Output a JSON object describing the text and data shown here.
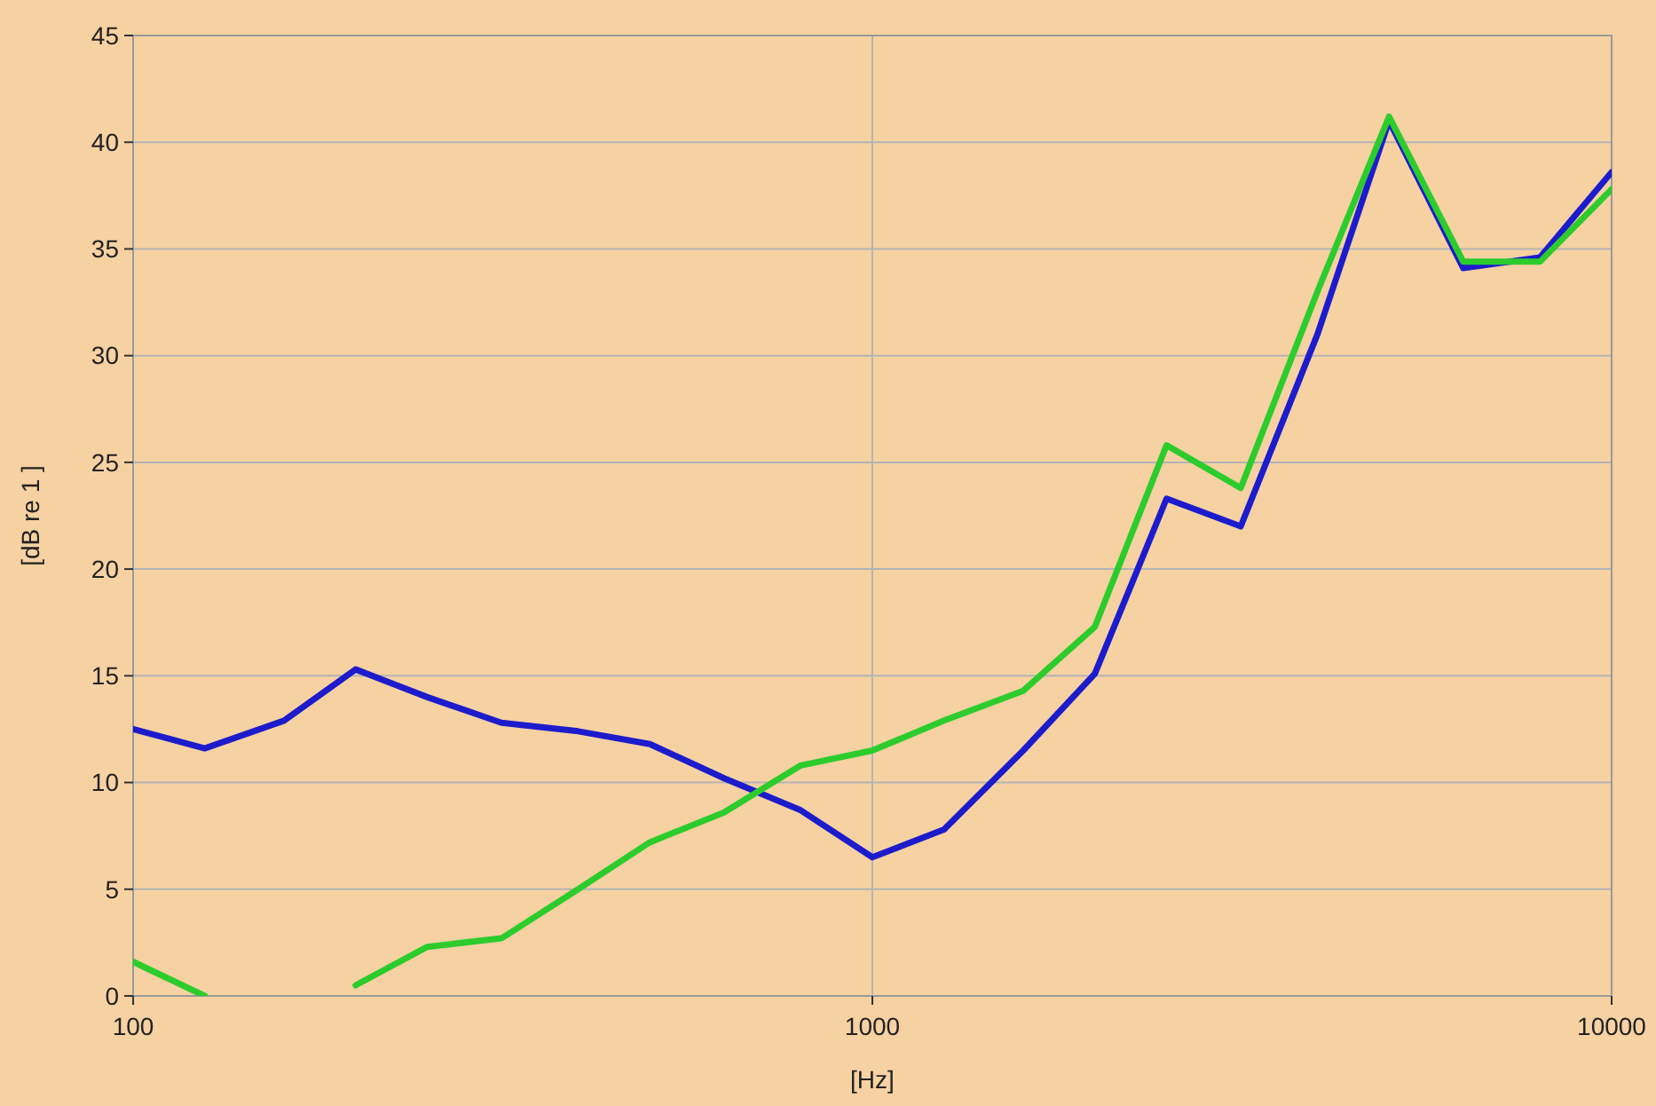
{
  "chart_data": {
    "type": "line",
    "xlabel": "[Hz]",
    "ylabel": "[dB re 1 ]",
    "log": "x",
    "grid": true,
    "marker": "none",
    "line_style": "solid",
    "x": [
      100,
      125,
      160,
      200,
      250,
      315,
      400,
      500,
      630,
      800,
      1000,
      1250,
      1600,
      2000,
      2500,
      3150,
      4000,
      5000,
      6300,
      8000,
      10000
    ],
    "xlim": [
      100,
      10000
    ],
    "xticks": [
      100,
      1000,
      10000
    ],
    "ylim": [
      0,
      45
    ],
    "yticks": [
      0,
      5,
      10,
      15,
      20,
      25,
      30,
      35,
      40,
      45
    ],
    "series": [
      {
        "color": "#1c1ccc",
        "values": [
          12.5,
          11.6,
          12.9,
          15.3,
          14,
          12.8,
          12.4,
          11.8,
          10.2,
          8.7,
          6.5,
          7.8,
          11.5,
          15.1,
          23.3,
          22,
          31,
          41,
          34.1,
          34.6,
          38.6
        ]
      },
      {
        "color": "#2ccc2c",
        "values": [
          1.6,
          0,
          null,
          0.5,
          2.3,
          2.7,
          5,
          7.2,
          8.6,
          10.8,
          11.5,
          12.9,
          14.3,
          17.3,
          25.8,
          23.8,
          33,
          41.2,
          34.4,
          34.4,
          37.8
        ]
      }
    ]
  }
}
